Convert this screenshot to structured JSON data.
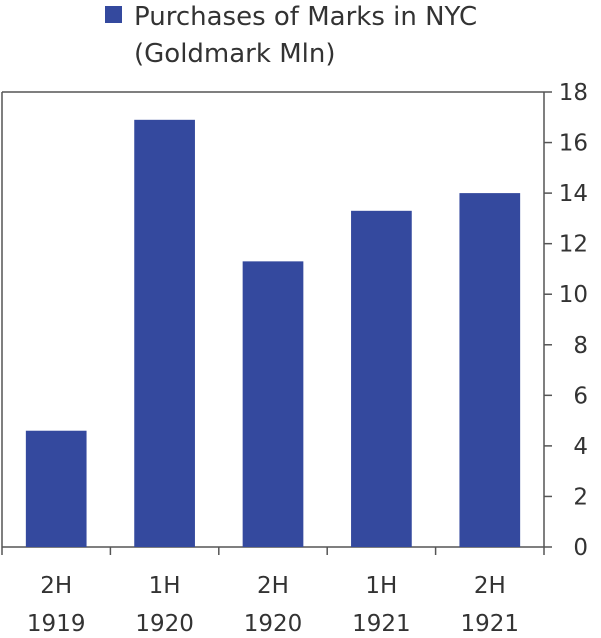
{
  "chart_data": {
    "type": "bar",
    "categories": [
      [
        "2H",
        "1919"
      ],
      [
        "1H",
        "1920"
      ],
      [
        "2H",
        "1920"
      ],
      [
        "1H",
        "1921"
      ],
      [
        "2H",
        "1921"
      ]
    ],
    "series": [
      {
        "name_lines": [
          "Purchases of Marks in NYC",
          "(Goldmark Mln)"
        ],
        "color": "#34499e",
        "values": [
          4.6,
          16.9,
          11.3,
          13.3,
          14.0
        ]
      }
    ],
    "title": "",
    "xlabel": "",
    "ylabel": "",
    "ylim": [
      0,
      18
    ],
    "yticks": [
      0,
      2,
      4,
      6,
      8,
      10,
      12,
      14,
      16,
      18
    ],
    "y_axis_side": "right",
    "legend_position": "top-left",
    "grid": false,
    "axis_color": "#555555"
  }
}
